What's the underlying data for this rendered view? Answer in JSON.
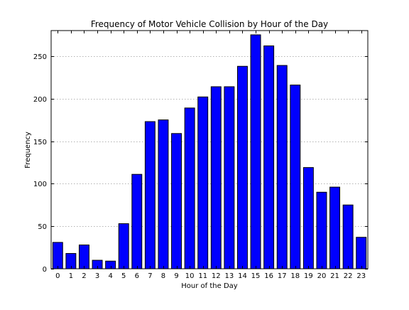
{
  "chart_data": {
    "type": "bar",
    "title": "Frequency of Motor Vehicle Collision by Hour of the Day",
    "xlabel": "Hour of the Day",
    "ylabel": "Frequency",
    "ylim": [
      0,
      280
    ],
    "yticks": [
      0,
      50,
      100,
      150,
      200,
      250
    ],
    "grid": "y-dotted",
    "legend": "none",
    "categories": [
      "0",
      "1",
      "2",
      "3",
      "4",
      "5",
      "6",
      "7",
      "8",
      "9",
      "10",
      "11",
      "12",
      "13",
      "14",
      "15",
      "16",
      "17",
      "18",
      "19",
      "20",
      "21",
      "22",
      "23"
    ],
    "values": [
      31,
      18,
      28,
      10,
      9,
      53,
      111,
      173,
      175,
      159,
      189,
      202,
      214,
      214,
      238,
      275,
      262,
      239,
      216,
      119,
      90,
      96,
      75,
      37
    ],
    "colors": {
      "bar_fill": "#0000ff",
      "bar_edge": "#000000",
      "grid": "#9a9a9a",
      "axes": "#000000"
    }
  }
}
